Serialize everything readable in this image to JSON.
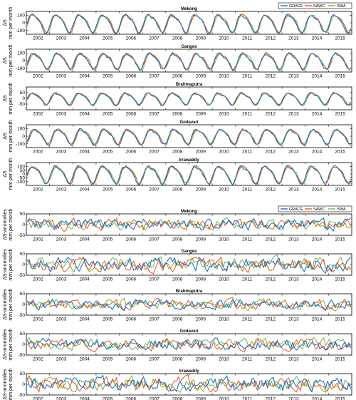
{
  "legend": [
    {
      "name": "GRACE",
      "color": "#1f6fc4"
    },
    {
      "name": "SAWC",
      "color": "#e8541a"
    },
    {
      "name": "ISBA",
      "color": "#76b043"
    }
  ],
  "chart_data": [
    {
      "type": "line",
      "group": "storage",
      "title": "Mekong",
      "ylabel_top": "ΔS",
      "ylabel_bottom": "mm per month",
      "xlim": [
        2002,
        2016
      ],
      "ylim": [
        -150,
        150
      ],
      "yticks": [
        -100,
        0,
        100
      ],
      "amplitude": 125,
      "noise": 0.12,
      "phase": 0.0
    },
    {
      "type": "line",
      "group": "storage",
      "title": "Ganges",
      "ylabel_top": "ΔS",
      "ylabel_bottom": "mm per month",
      "xlim": [
        2002,
        2016
      ],
      "ylim": [
        -150,
        150
      ],
      "yticks": [
        -100,
        0,
        100
      ],
      "amplitude": 110,
      "noise": 0.15,
      "phase": 0.05
    },
    {
      "type": "line",
      "group": "storage",
      "title": "Brahmaputra",
      "ylabel_top": "ΔS",
      "ylabel_bottom": "mm per month",
      "xlim": [
        2002,
        2016
      ],
      "ylim": [
        -100,
        100
      ],
      "yticks": [
        -50,
        0,
        50
      ],
      "amplitude": 55,
      "noise": 0.15,
      "phase": 0.0
    },
    {
      "type": "line",
      "group": "storage",
      "title": "Godavari",
      "ylabel_top": "ΔS",
      "ylabel_bottom": "mm per month",
      "xlim": [
        2002,
        2016
      ],
      "ylim": [
        -150,
        150
      ],
      "yticks": [
        -100,
        0,
        100
      ],
      "amplitude": 105,
      "noise": 0.14,
      "phase": 0.08
    },
    {
      "type": "line",
      "group": "storage",
      "title": "Irrawaddy",
      "ylabel_top": "ΔS",
      "ylabel_bottom": "mm per month",
      "xlim": [
        2002,
        2016
      ],
      "ylim": [
        -150,
        150
      ],
      "yticks": [
        -100,
        -50,
        0,
        50,
        100
      ],
      "amplitude": 120,
      "noise": 0.13,
      "phase": 0.0
    },
    {
      "type": "line",
      "group": "anomalies",
      "title": "Mekong",
      "ylabel_top": "ΔS-anomalies",
      "ylabel_bottom": "mm per month",
      "xlim": [
        2002,
        2016
      ],
      "ylim": [
        -50,
        50
      ],
      "yticks": [
        -50,
        0,
        50
      ],
      "amplitude": 25,
      "noise": 0.9,
      "phase": 0.0
    },
    {
      "type": "line",
      "group": "anomalies",
      "title": "Ganges",
      "ylabel_top": "ΔS-anomalies",
      "ylabel_bottom": "mm per month",
      "xlim": [
        2002,
        2016
      ],
      "ylim": [
        -50,
        50
      ],
      "yticks": [
        -50,
        0,
        50
      ],
      "amplitude": 30,
      "noise": 0.9,
      "phase": 0.0
    },
    {
      "type": "line",
      "group": "anomalies",
      "title": "Brahmaputra",
      "ylabel_top": "ΔS-anomalies",
      "ylabel_bottom": "mm per month",
      "xlim": [
        2002,
        2016
      ],
      "ylim": [
        -50,
        50
      ],
      "yticks": [
        -50,
        0,
        50
      ],
      "amplitude": 22,
      "noise": 0.9,
      "phase": 0.0
    },
    {
      "type": "line",
      "group": "anomalies",
      "title": "Godavari",
      "ylabel_top": "ΔS-anomalies",
      "ylabel_bottom": "mm per month",
      "xlim": [
        2002,
        2016
      ],
      "ylim": [
        -50,
        50
      ],
      "yticks": [
        -50,
        0,
        50
      ],
      "amplitude": 25,
      "noise": 0.9,
      "phase": 0.0
    },
    {
      "type": "line",
      "group": "anomalies",
      "title": "Irrawaddy",
      "ylabel_top": "ΔS-anomalies",
      "ylabel_bottom": "mm per month",
      "xlim": [
        2002,
        2016
      ],
      "ylim": [
        -50,
        50
      ],
      "yticks": [
        -50,
        0,
        50
      ],
      "amplitude": 32,
      "noise": 0.9,
      "phase": 0.0
    }
  ],
  "xtick_labels": [
    "2002",
    "2003",
    "2004",
    "2005",
    "2006",
    "2007",
    "2008",
    "2009",
    "2010",
    "2011",
    "2012",
    "2013",
    "2014",
    "2015"
  ]
}
